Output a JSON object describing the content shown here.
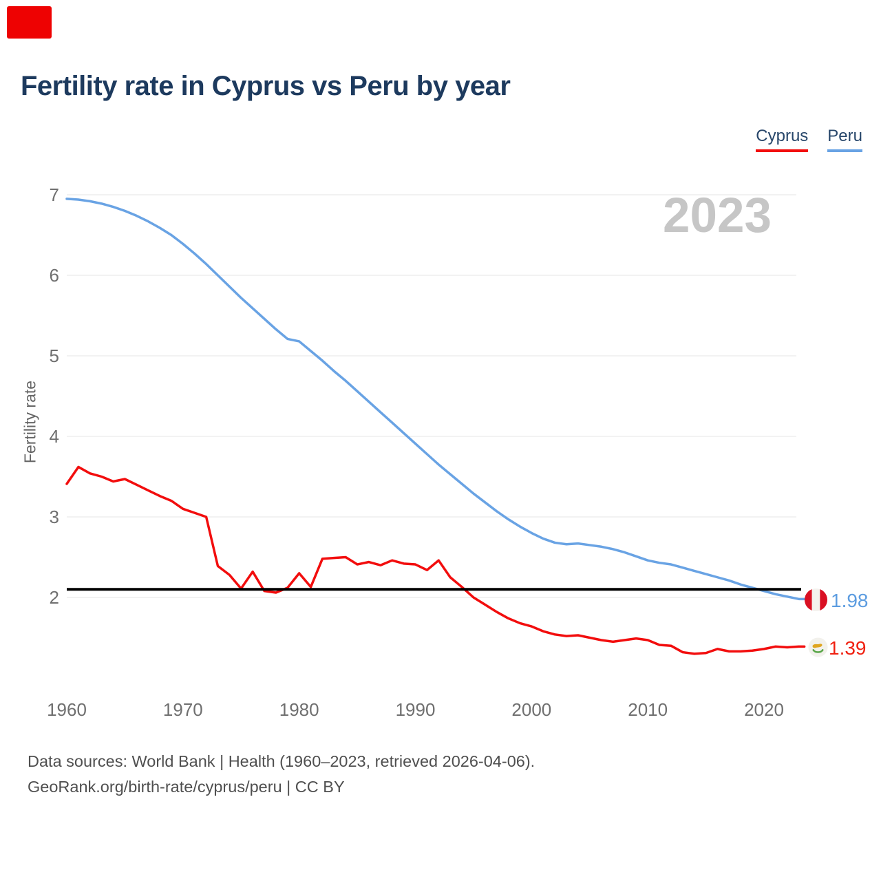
{
  "title": "Fertility rate in Cyprus vs Peru by year",
  "legend": [
    {
      "label": "Cyprus",
      "color": "#f20d0d"
    },
    {
      "label": "Peru",
      "color": "#69a3e4"
    }
  ],
  "watermark": "2023",
  "y_axis": {
    "label": "Fertility rate",
    "ticks": [
      7,
      6,
      5,
      4,
      3,
      2
    ]
  },
  "x_axis": {
    "ticks": [
      1960,
      1970,
      1980,
      1990,
      2000,
      2010,
      2020
    ]
  },
  "reference_line": {
    "value": 2.1,
    "color": "#000000"
  },
  "end_labels": [
    {
      "series": "Peru",
      "value": "1.98",
      "flag": "peru-flag"
    },
    {
      "series": "Cyprus",
      "value": "1.39",
      "flag": "cyprus-flag"
    }
  ],
  "footer": {
    "line1": "Data sources: World Bank | Health (1960–2023, retrieved 2026-04-06).",
    "line2": "GeoRank.org/birth-rate/cyprus/peru | CC BY"
  },
  "colors": {
    "cyprus_line": "#f20d0d",
    "peru_line": "#69a3e4",
    "reference_line": "#000000",
    "title_text": "#1d3a5e",
    "watermark_text": "#c6c6c6",
    "axis_text": "#6f6f6f",
    "gridline": "#e9e9e9",
    "footer_text": "#4f4f4f",
    "overlay_box": "#ee0202",
    "peru_flag_red": "#d91023",
    "cyprus_flag_yellow": "#dfa520",
    "cyprus_flag_green": "#56a546"
  },
  "chart_data": {
    "type": "line",
    "title": "Fertility rate in Cyprus vs Peru by year",
    "xlabel": "",
    "ylabel": "Fertility rate",
    "ylim": [
      1.1,
      7.2
    ],
    "xlim": [
      1960,
      2023
    ],
    "grid": "horizontal",
    "legend_position": "top-right",
    "reference_line_value": 2.1,
    "x": [
      1960,
      1961,
      1962,
      1963,
      1964,
      1965,
      1966,
      1967,
      1968,
      1969,
      1970,
      1971,
      1972,
      1973,
      1974,
      1975,
      1976,
      1977,
      1978,
      1979,
      1980,
      1981,
      1982,
      1983,
      1984,
      1985,
      1986,
      1987,
      1988,
      1989,
      1990,
      1991,
      1992,
      1993,
      1994,
      1995,
      1996,
      1997,
      1998,
      1999,
      2000,
      2001,
      2002,
      2003,
      2004,
      2005,
      2006,
      2007,
      2008,
      2009,
      2010,
      2011,
      2012,
      2013,
      2014,
      2015,
      2016,
      2017,
      2018,
      2019,
      2020,
      2021,
      2022,
      2023
    ],
    "series": [
      {
        "name": "Cyprus",
        "color": "#f20d0d",
        "values": [
          3.41,
          3.62,
          3.54,
          3.5,
          3.44,
          3.47,
          3.4,
          3.33,
          3.26,
          3.2,
          3.1,
          3.05,
          3.0,
          2.39,
          2.28,
          2.11,
          2.32,
          2.08,
          2.06,
          2.12,
          2.3,
          2.13,
          2.48,
          2.49,
          2.5,
          2.41,
          2.44,
          2.4,
          2.46,
          2.42,
          2.41,
          2.34,
          2.46,
          2.25,
          2.13,
          2.0,
          1.91,
          1.82,
          1.74,
          1.68,
          1.64,
          1.58,
          1.54,
          1.52,
          1.53,
          1.5,
          1.47,
          1.45,
          1.47,
          1.49,
          1.47,
          1.41,
          1.4,
          1.32,
          1.3,
          1.31,
          1.36,
          1.33,
          1.33,
          1.34,
          1.36,
          1.39,
          1.38,
          1.39
        ]
      },
      {
        "name": "Peru",
        "color": "#69a3e4",
        "values": [
          6.95,
          6.94,
          6.92,
          6.89,
          6.85,
          6.8,
          6.74,
          6.67,
          6.59,
          6.5,
          6.39,
          6.27,
          6.14,
          6.0,
          5.86,
          5.72,
          5.59,
          5.46,
          5.33,
          5.21,
          5.18,
          5.06,
          4.94,
          4.81,
          4.69,
          4.56,
          4.43,
          4.3,
          4.17,
          4.04,
          3.91,
          3.78,
          3.65,
          3.53,
          3.41,
          3.29,
          3.18,
          3.07,
          2.97,
          2.88,
          2.8,
          2.73,
          2.68,
          2.66,
          2.67,
          2.65,
          2.63,
          2.6,
          2.56,
          2.51,
          2.46,
          2.43,
          2.41,
          2.37,
          2.33,
          2.29,
          2.25,
          2.21,
          2.16,
          2.12,
          2.08,
          2.04,
          2.01,
          1.98
        ]
      }
    ]
  }
}
